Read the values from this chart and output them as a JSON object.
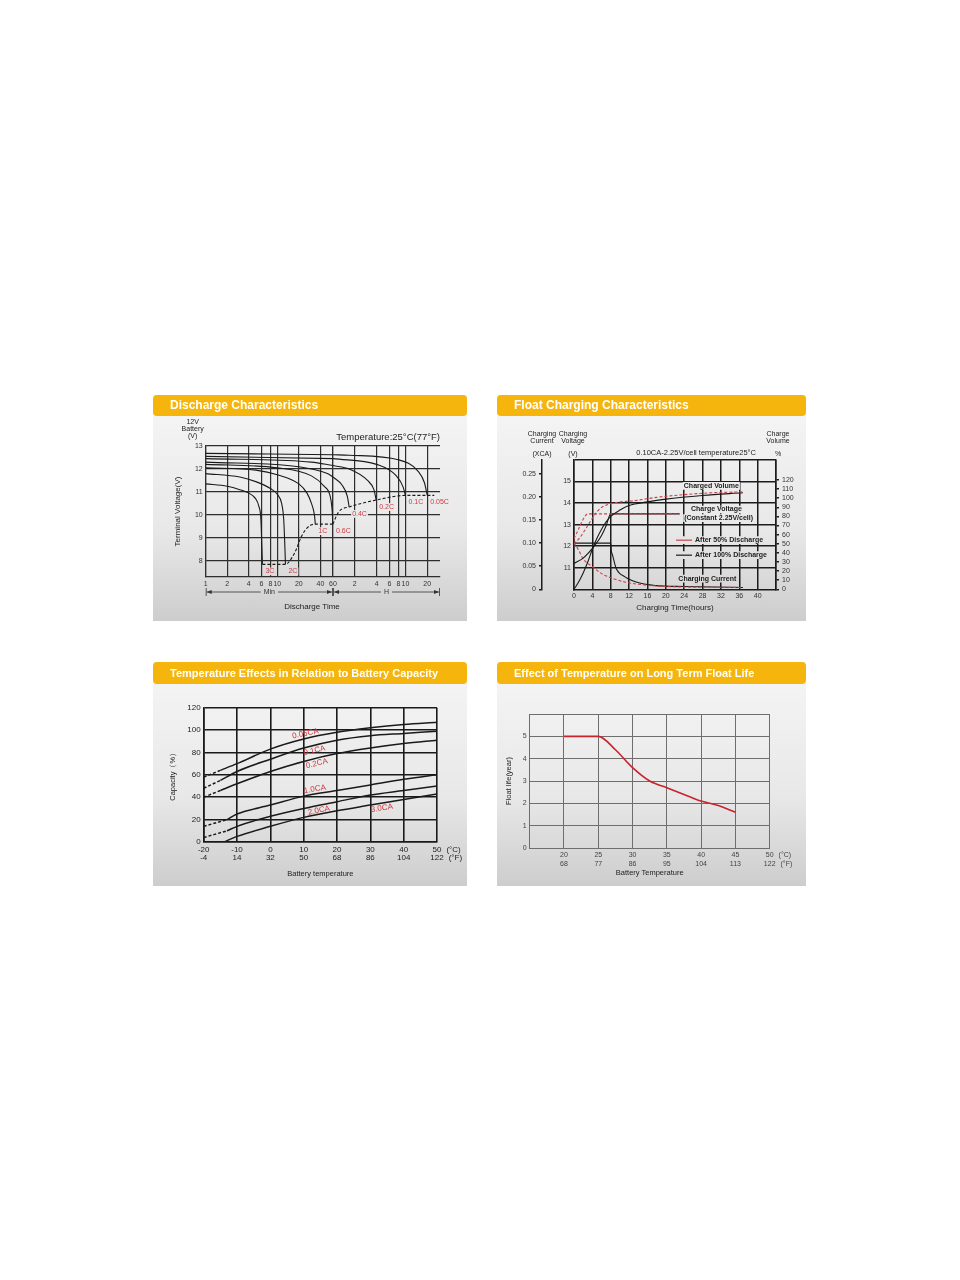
{
  "chart_data": [
    {
      "type": "line",
      "title": "Discharge Characteristics",
      "xlabel": "Discharge Time",
      "ylabel": "Terminal Voltage(V)",
      "annotations": [
        "12V Battery (V)",
        "Min"
      ],
      "log": "x",
      "xlim": [
        1,
        60
      ],
      "xticks": [
        1,
        2,
        4,
        6,
        8,
        10,
        20,
        40,
        60
      ],
      "ylim": [
        7.3,
        13
      ],
      "yticks": [
        8,
        9,
        10,
        11,
        12,
        13
      ],
      "grid": true,
      "series": [
        {
          "name": "3C",
          "color": "#1a1a1a",
          "x": [
            1,
            2,
            3,
            4,
            5,
            5.5,
            5.9,
            6.1,
            6.2
          ],
          "values": [
            11.35,
            11.25,
            11.1,
            10.95,
            10.7,
            10.4,
            9.8,
            8.5,
            7.85
          ]
        },
        {
          "name": "2C",
          "color": "#1a1a1a",
          "x": [
            1,
            3,
            5,
            8,
            10,
            11.5,
            12.3,
            12.8,
            13
          ],
          "values": [
            11.8,
            11.65,
            11.45,
            11.15,
            10.9,
            10.5,
            9.8,
            8.5,
            7.85
          ]
        },
        {
          "name": "1C",
          "color": "#1a1a1a",
          "x": [
            1,
            5,
            10,
            20,
            26,
            30,
            33,
            34
          ],
          "values": [
            12.05,
            11.95,
            11.75,
            11.35,
            10.95,
            10.5,
            10,
            9.6
          ]
        },
        {
          "name": "0.6C",
          "color": "#1a1a1a",
          "x": [
            1,
            10,
            30,
            45,
            55,
            58,
            60
          ],
          "values": [
            12.2,
            12.05,
            11.7,
            11.25,
            10.8,
            10.3,
            9.6
          ]
        },
        {
          "color": "#1a1a1a",
          "x": [
            1,
            20,
            50,
            60
          ],
          "values": [
            12.3,
            12.1,
            11.8,
            11.65
          ]
        },
        {
          "color": "#1a1a1a",
          "x": [
            1,
            30,
            60
          ],
          "values": [
            12.45,
            12.3,
            12.15
          ]
        },
        {
          "color": "#1a1a1a",
          "x": [
            1,
            60
          ],
          "values": [
            12.55,
            12.45
          ]
        },
        {
          "color": "#1a1a1a",
          "x": [
            1,
            60
          ],
          "values": [
            12.68,
            12.62
          ]
        },
        {
          "color": "#1a1a1a",
          "line_style": "dashed",
          "x": [
            6.2,
            13,
            15.7,
            18.4,
            21.6,
            25.5,
            29,
            34,
            60
          ],
          "values": [
            7.85,
            7.85,
            8.1,
            8.5,
            9.05,
            9.4,
            9.55,
            9.6,
            9.6
          ]
        }
      ]
    },
    {
      "type": "line",
      "subtitle": "Temperature:25°C(77°F)",
      "annotations": [
        "H"
      ],
      "log": "x",
      "xlim": [
        1,
        30
      ],
      "xticks": [
        2,
        4,
        6,
        8,
        10,
        20
      ],
      "ylim": [
        7.3,
        13
      ],
      "yticks": [
        8,
        9,
        10,
        11,
        12,
        13
      ],
      "tick_labels": "x",
      "grid": true,
      "series": [
        {
          "name": "0.4C",
          "color": "#1a1a1a",
          "x": [
            1,
            1.33,
            1.58,
            1.67
          ],
          "values": [
            11.65,
            11.3,
            10.8,
            10.35
          ]
        },
        {
          "name": "0.2C",
          "color": "#1a1a1a",
          "x": [
            1,
            1.67,
            3,
            3.67,
            3.95
          ],
          "values": [
            12.15,
            12.0,
            11.5,
            11.1,
            10.65
          ]
        },
        {
          "name": "0.1C",
          "color": "#1a1a1a",
          "x": [
            1,
            4,
            7.5,
            9.33,
            10
          ],
          "values": [
            12.45,
            12.2,
            11.7,
            11.2,
            10.85
          ]
        },
        {
          "name": "0.05C",
          "color": "#1a1a1a",
          "x": [
            1,
            1.67,
            8,
            15,
            18.3,
            20
          ],
          "values": [
            12.62,
            12.6,
            12.4,
            11.9,
            11.4,
            10.85
          ]
        },
        {
          "color": "#1a1a1a",
          "line_style": "dashed",
          "x": [
            1,
            1.13,
            1.25,
            1.67,
            3.95,
            10,
            20,
            25
          ],
          "values": [
            9.6,
            10.0,
            10.2,
            10.35,
            10.65,
            10.85,
            10.85,
            10.85
          ]
        }
      ]
    },
    {
      "type": "line",
      "title": "Float Charging Characteristics",
      "subtitle": "0.10CA-2.25V/cell temperature25°C",
      "xlabel": "Charging Time(hours)",
      "ylabel": "Charging Voltage (V)",
      "y2label": "Charging Current (XCA)",
      "y3label": "Charge Volume %",
      "xlim": [
        0,
        44
      ],
      "xticks": [
        0,
        4,
        8,
        12,
        16,
        20,
        24,
        28,
        32,
        36,
        40,
        {
          "value": 44,
          "label": null
        }
      ],
      "ylim": [
        10,
        16
      ],
      "yticks": [
        11,
        12,
        13,
        14,
        15,
        {
          "value": 16,
          "label": null
        }
      ],
      "y2lim": [
        0,
        0.28
      ],
      "y2ticks": [
        0,
        0.05,
        {
          "value": 0.1,
          "label": "0.10"
        },
        0.15,
        {
          "value": 0.2,
          "label": "0.20"
        },
        0.25
      ],
      "y3lim": [
        0,
        142
      ],
      "y3ticks": [
        0,
        10,
        20,
        30,
        40,
        50,
        60,
        70,
        80,
        90,
        100,
        110,
        120
      ],
      "grid": true,
      "legend": "right",
      "annotations": [
        "Charged Volume",
        "Charge Voltage",
        "(Constant 2.25V/cell)",
        "Charging Current"
      ],
      "series": [
        {
          "color": "#c8414a",
          "line_style": "dashed",
          "axis": "y3",
          "x": [
            0,
            1,
            2,
            3,
            4,
            5,
            6,
            8,
            10,
            12.6,
            18,
            24,
            30,
            36.8
          ],
          "values": [
            50,
            55,
            62,
            70,
            78,
            85,
            90,
            94,
            96,
            97,
            101,
            104,
            106,
            107
          ]
        },
        {
          "color": "#1a1a1a",
          "axis": "y3",
          "x": [
            0,
            1,
            2,
            3,
            4,
            5,
            6,
            7,
            8,
            10,
            12,
            16,
            20,
            28,
            36.8
          ],
          "values": [
            0,
            8,
            18,
            30,
            44,
            56,
            66,
            74,
            80,
            87,
            92,
            96,
            99,
            103,
            106
          ]
        },
        {
          "name": "After 50% Discharge",
          "color": "#c8414a",
          "line_style": "dashed",
          "x": [
            0,
            1,
            2,
            3,
            23
          ],
          "values": [
            12.35,
            12.8,
            13.25,
            13.5,
            13.5
          ]
        },
        {
          "name": "After 100% Discharge",
          "color": "#1a1a1a",
          "x": [
            0,
            2,
            4,
            6,
            7,
            8,
            23
          ],
          "values": [
            11.2,
            11.45,
            11.9,
            12.5,
            12.95,
            13.5,
            13.5
          ]
        },
        {
          "color": "#c8414a",
          "line_style": "dashed",
          "axis": "y2",
          "x": [
            0,
            1,
            2,
            4,
            6,
            8,
            11,
            14,
            20,
            36.8
          ],
          "values": [
            0.1,
            0.085,
            0.066,
            0.049,
            0.034,
            0.025,
            0.016,
            0.011,
            0.006,
            0.004
          ]
        },
        {
          "color": "#1a1a1a",
          "axis": "y2",
          "x": [
            0,
            8,
            8.1,
            8.4,
            9.2,
            11.1,
            14.1,
            17.9,
            23.9,
            36.8
          ],
          "values": [
            0.1,
            0.1,
            0.085,
            0.074,
            0.045,
            0.027,
            0.014,
            0.008,
            0.006,
            0.004
          ]
        }
      ]
    },
    {
      "type": "line",
      "title": "Temperature Effects in Relation to Battery Capacity",
      "xlabel": "Battery temperature",
      "ylabel": "Capacity（%）",
      "annotations": [
        "(°C)",
        "(°F)"
      ],
      "xlim": [
        -20,
        50
      ],
      "xticks": [
        -20,
        -10,
        0,
        10,
        20,
        30,
        40,
        50
      ],
      "x2lim": [
        -4,
        122
      ],
      "x2ticks": [
        -4,
        14,
        32,
        50,
        68,
        86,
        104,
        122
      ],
      "ylim": [
        0,
        120
      ],
      "yticks": [
        0,
        20,
        40,
        60,
        80,
        100,
        120
      ],
      "grid": true,
      "series": [
        {
          "name": "0.05CA",
          "color": "#1a1a1a",
          "x": [
            -15,
            -10,
            0,
            10,
            20,
            30,
            40,
            50
          ],
          "values": [
            64,
            70,
            83,
            92,
            98,
            102,
            105,
            107
          ]
        },
        {
          "name": "0.1CA",
          "color": "#1a1a1a",
          "x": [
            -15,
            -10,
            0,
            10,
            20,
            30,
            40,
            50
          ],
          "values": [
            55,
            63,
            74,
            84,
            91,
            95,
            97,
            99
          ]
        },
        {
          "name": "0.2CA",
          "color": "#1a1a1a",
          "x": [
            -15,
            -10,
            0,
            10,
            20,
            30,
            40,
            50
          ],
          "values": [
            46,
            52,
            63,
            72,
            79,
            84,
            88,
            91
          ]
        },
        {
          "name": "1.0CA",
          "color": "#1a1a1a",
          "x": [
            -13,
            -10,
            0,
            10,
            20,
            30,
            40,
            50
          ],
          "values": [
            20,
            25,
            33,
            41,
            46,
            51,
            56,
            60
          ]
        },
        {
          "name": "2.0CA",
          "color": "#1a1a1a",
          "x": [
            -13,
            -10,
            0,
            10,
            20,
            30,
            40,
            50
          ],
          "values": [
            10,
            14,
            23,
            30,
            36,
            42,
            46,
            50
          ]
        },
        {
          "name": "3.0CA",
          "color": "#1a1a1a",
          "x": [
            -14,
            -10,
            0,
            10,
            20,
            30,
            40,
            50
          ],
          "values": [
            0,
            5,
            14,
            22,
            28,
            33,
            38,
            43
          ]
        },
        {
          "color": "#1a1a1a",
          "line_style": "dashed",
          "x": [
            -20,
            -15
          ],
          "values": [
            58,
            64
          ]
        },
        {
          "color": "#1a1a1a",
          "line_style": "dashed",
          "x": [
            -20,
            -15
          ],
          "values": [
            48,
            55
          ]
        },
        {
          "color": "#1a1a1a",
          "line_style": "dashed",
          "x": [
            -20,
            -15
          ],
          "values": [
            40,
            46
          ]
        },
        {
          "color": "#1a1a1a",
          "line_style": "dashed",
          "x": [
            -20,
            -13
          ],
          "values": [
            14,
            20
          ]
        },
        {
          "color": "#1a1a1a",
          "line_style": "dashed",
          "x": [
            -20,
            -13
          ],
          "values": [
            4,
            10
          ]
        }
      ]
    },
    {
      "type": "line",
      "title": "Effect of Temperature on Long Term Float Life",
      "xlabel": "Battery Temperature",
      "ylabel": "Float life(year)",
      "annotations": [
        "(°C)",
        "(°F)"
      ],
      "xlim": [
        15,
        50
      ],
      "xticks": [
        20,
        25,
        30,
        35,
        40,
        45,
        50
      ],
      "x2lim": [
        59,
        122
      ],
      "x2ticks": [
        68,
        77,
        86,
        95,
        104,
        113,
        122
      ],
      "ylim": [
        0,
        6
      ],
      "yticks": [
        0,
        1,
        2,
        3,
        4,
        5,
        {
          "value": 6,
          "label": null
        }
      ],
      "grid": true,
      "series": [
        {
          "color": "#c8242b",
          "x": [
            20,
            25,
            27.5,
            30,
            32.5,
            35,
            37.5,
            40,
            42.5,
            45
          ],
          "values": [
            5,
            5,
            4.4,
            3.6,
            3.0,
            2.7,
            2.4,
            2.1,
            1.9,
            1.6
          ]
        }
      ]
    }
  ]
}
